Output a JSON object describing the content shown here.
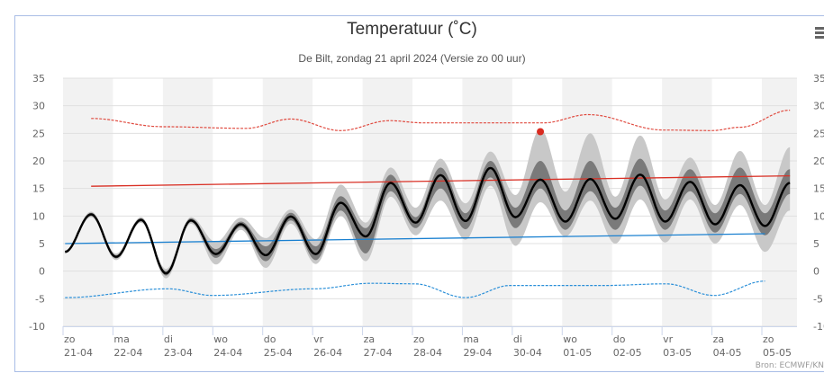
{
  "title": "Temperatuur (˚C)",
  "subtitle": "De Bilt, zondag 21 april 2024 (Versie zo 00 uur)",
  "credit": "Bron: ECMWF/KN",
  "menu_icon": "hamburger-menu-icon",
  "chart_data": {
    "type": "line",
    "title": "Temperatuur (˚C)",
    "subtitle": "De Bilt, zondag 21 april 2024 (Versie zo 00 uur)",
    "ylim": [
      -10,
      35
    ],
    "yticks": [
      35,
      30,
      25,
      20,
      15,
      10,
      5,
      0,
      -5,
      -10
    ],
    "grid": true,
    "alternating_day_shading": true,
    "x_categories": [
      {
        "day": "zo",
        "date": "21-04"
      },
      {
        "day": "ma",
        "date": "22-04"
      },
      {
        "day": "di",
        "date": "23-04"
      },
      {
        "day": "wo",
        "date": "24-04"
      },
      {
        "day": "do",
        "date": "25-04"
      },
      {
        "day": "vr",
        "date": "26-04"
      },
      {
        "day": "za",
        "date": "27-04"
      },
      {
        "day": "zo",
        "date": "28-04"
      },
      {
        "day": "ma",
        "date": "29-04"
      },
      {
        "day": "di",
        "date": "30-04"
      },
      {
        "day": "wo",
        "date": "01-05"
      },
      {
        "day": "do",
        "date": "02-05"
      },
      {
        "day": "vr",
        "date": "03-05"
      },
      {
        "day": "za",
        "date": "04-05"
      },
      {
        "day": "zo",
        "date": "05-05"
      }
    ],
    "colors": {
      "mean": "#000000",
      "inner_band": "#7a7a7a",
      "outer_band": "#c8c8c8",
      "normal_max": "#d93025",
      "normal_min": "#1a80d0",
      "record_max": "#e04a3f",
      "record_min": "#2a8fd8",
      "marker": "#d92b20",
      "shade": "#f2f2f2"
    },
    "ensemble": {
      "x": [
        "21-04 01:00",
        "21-04 13:30",
        "22-04 01:30",
        "22-04 13:30",
        "23-04 01:30",
        "23-04 13:30",
        "24-04 01:30",
        "24-04 13:30",
        "25-04 01:30",
        "25-04 13:30",
        "26-04 01:30",
        "26-04 13:30",
        "27-04 01:30",
        "27-04 13:30",
        "28-04 01:30",
        "28-04 13:30",
        "29-04 01:30",
        "29-04 13:30",
        "30-04 01:30",
        "30-04 13:30",
        "01-05 01:30",
        "01-05 13:30",
        "02-05 01:30",
        "02-05 13:30",
        "03-05 01:30",
        "03-05 13:30",
        "04-05 01:30",
        "04-05 13:30",
        "05-05 01:30",
        "05-05 13:30"
      ],
      "mean": [
        3.5,
        10.3,
        2.6,
        9.3,
        -0.4,
        9.2,
        3.1,
        8.5,
        2.9,
        9.9,
        3.1,
        12.4,
        6.3,
        16.0,
        8.8,
        17.4,
        9.1,
        18.7,
        9.8,
        16.6,
        9.0,
        16.7,
        9.5,
        17.5,
        9.0,
        16.2,
        8.5,
        15.6,
        8.2,
        16.0
      ],
      "outer_low": [
        3.2,
        9.8,
        2.0,
        8.8,
        -1.3,
        8.6,
        1.2,
        7.5,
        0.6,
        8.6,
        1.3,
        10.0,
        1.8,
        13.5,
        6.5,
        12.8,
        5.7,
        15.5,
        4.6,
        12.5,
        6.3,
        12.8,
        5.0,
        13.0,
        5.2,
        13.0,
        5.0,
        12.0,
        3.5,
        11.0
      ],
      "inner_low": [
        3.3,
        10.0,
        2.3,
        9.0,
        -0.8,
        8.9,
        2.4,
        8.0,
        1.8,
        9.2,
        2.0,
        11.0,
        3.2,
        14.5,
        7.8,
        15.0,
        7.6,
        17.0,
        7.8,
        15.0,
        7.5,
        14.5,
        7.5,
        15.5,
        7.5,
        14.5,
        7.0,
        14.0,
        6.5,
        14.0
      ],
      "inner_high": [
        3.7,
        10.6,
        2.9,
        9.6,
        0.0,
        9.6,
        4.0,
        9.0,
        4.5,
        10.6,
        4.5,
        13.6,
        7.8,
        17.5,
        9.8,
        18.8,
        10.5,
        20.0,
        11.5,
        20.0,
        11.0,
        20.0,
        11.5,
        20.4,
        11.0,
        18.5,
        10.5,
        18.8,
        10.5,
        18.5
      ],
      "outer_high": [
        3.8,
        10.8,
        3.2,
        9.8,
        0.4,
        9.8,
        5.3,
        9.7,
        6.0,
        11.2,
        5.8,
        15.7,
        8.8,
        18.8,
        11.5,
        20.4,
        12.3,
        21.7,
        13.8,
        25.8,
        14.4,
        25.0,
        13.5,
        24.6,
        13.0,
        20.6,
        12.0,
        21.8,
        12.0,
        22.5
      ]
    },
    "normal_max": {
      "x": [
        "21-04 13:30",
        "05-05 13:30"
      ],
      "y": [
        15.4,
        17.3
      ]
    },
    "normal_min": {
      "x": [
        "21-04 01:00",
        "05-05 01:30"
      ],
      "y": [
        5.0,
        6.8
      ]
    },
    "record_max": {
      "x": [
        "21-04 13:30",
        "23-04 00:00",
        "24-04 16:00",
        "25-04 13:30",
        "26-04 13:30",
        "27-04 13:00",
        "28-04 05:00",
        "30-04 15:00",
        "01-05 12:30",
        "03-05 00:30",
        "04-05 00:00",
        "04-05 13:30",
        "05-05 13:30"
      ],
      "y": [
        27.7,
        26.2,
        25.9,
        27.6,
        25.5,
        27.3,
        26.9,
        26.9,
        28.4,
        25.6,
        25.5,
        26.1,
        29.2
      ]
    },
    "record_min": {
      "x": [
        "21-04 01:00",
        "23-04 02:30",
        "24-04 00:00",
        "26-04 01:00",
        "27-04 04:00",
        "28-04 01:00",
        "29-04 01:30",
        "29-04 23:00",
        "01-05 20:00",
        "03-05 02:00",
        "04-05 01:00",
        "05-05 01:30"
      ],
      "y": [
        -4.8,
        -3.2,
        -4.4,
        -3.2,
        -2.2,
        -2.3,
        -4.8,
        -2.6,
        -2.6,
        -2.3,
        -4.4,
        -1.8
      ]
    },
    "markers": [
      {
        "x": "30-04 13:30",
        "y": 25.3
      }
    ]
  }
}
